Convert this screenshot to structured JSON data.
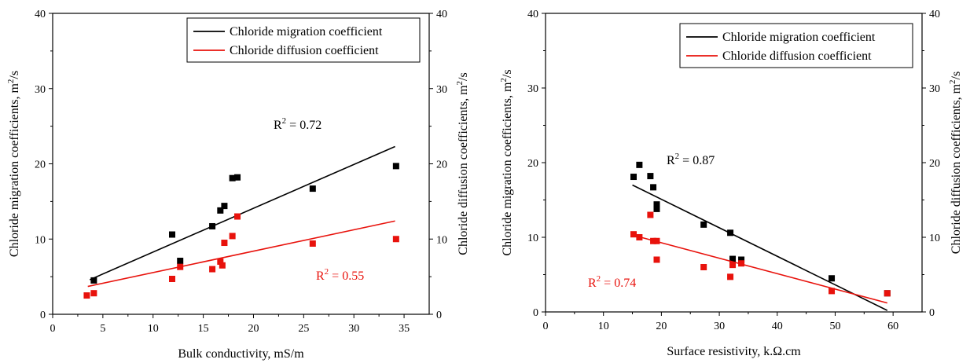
{
  "chart_data": [
    {
      "type": "scatter",
      "xlabel": "Bulk conductivity, mS/m",
      "ylabel": "Chloride migration coefficients, m",
      "ylabel_sup": "2",
      "ylabel_tail": "/s",
      "y2label": "Chloride diffusion coefficients, m",
      "y2label_sup": "2",
      "y2label_tail": "/s",
      "xlim": [
        0,
        37.5
      ],
      "ylim": [
        0,
        40
      ],
      "y2lim": [
        0,
        40
      ],
      "xticks": [
        0,
        5,
        10,
        15,
        20,
        25,
        30,
        35
      ],
      "yticks": [
        0,
        10,
        20,
        30,
        40
      ],
      "grid": false,
      "legend_position": "top-right",
      "series": [
        {
          "name": "Chloride migration coefficient",
          "color": "#000000",
          "marker": "square",
          "points": [
            [
              4.1,
              4.5
            ],
            [
              11.9,
              10.6
            ],
            [
              12.7,
              7.1
            ],
            [
              15.9,
              11.7
            ],
            [
              16.7,
              13.8
            ],
            [
              17.1,
              14.4
            ],
            [
              17.9,
              18.1
            ],
            [
              18.4,
              18.2
            ],
            [
              25.9,
              16.7
            ],
            [
              34.2,
              19.7
            ]
          ],
          "fit": [
            [
              3.7,
              4.6
            ],
            [
              34.1,
              22.3
            ]
          ],
          "r2_label": "R",
          "r2_sup": "2",
          "r2_value": " = 0.72"
        },
        {
          "name": "Chloride diffusion coefficient",
          "color": "#e8120c",
          "marker": "square",
          "points": [
            [
              3.4,
              2.5
            ],
            [
              4.1,
              2.8
            ],
            [
              11.9,
              4.7
            ],
            [
              12.7,
              6.3
            ],
            [
              15.9,
              6.0
            ],
            [
              16.7,
              7.0
            ],
            [
              16.9,
              6.5
            ],
            [
              17.1,
              9.5
            ],
            [
              17.9,
              10.4
            ],
            [
              18.4,
              13.0
            ],
            [
              25.9,
              9.4
            ],
            [
              34.2,
              10.0
            ]
          ],
          "fit": [
            [
              3.5,
              3.7
            ],
            [
              34.1,
              12.4
            ]
          ],
          "r2_label": "R",
          "r2_sup": "2",
          "r2_value": " = 0.55"
        }
      ]
    },
    {
      "type": "scatter",
      "xlabel": "Surface resistivity, k.Ω.cm",
      "ylabel": "Chloride migration coefficients, m",
      "ylabel_sup": "2",
      "ylabel_tail": "/s",
      "y2label": "Chloride diffusion coefficients, m",
      "y2label_sup": "2",
      "y2label_tail": "/s",
      "xlim": [
        0,
        65
      ],
      "ylim": [
        0,
        40
      ],
      "y2lim": [
        0,
        40
      ],
      "xticks": [
        0,
        10,
        20,
        30,
        40,
        50,
        60
      ],
      "yticks": [
        0,
        10,
        20,
        30,
        40
      ],
      "grid": false,
      "legend_position": "top-right",
      "series": [
        {
          "name": "Chloride migration coefficient",
          "color": "#000000",
          "marker": "square",
          "points": [
            [
              15.2,
              18.1
            ],
            [
              16.2,
              19.7
            ],
            [
              18.1,
              18.2
            ],
            [
              18.6,
              16.7
            ],
            [
              19.2,
              14.4
            ],
            [
              19.2,
              13.8
            ],
            [
              27.3,
              11.7
            ],
            [
              31.9,
              10.6
            ],
            [
              32.3,
              7.1
            ],
            [
              33.8,
              7.0
            ],
            [
              49.4,
              4.5
            ],
            [
              59.0,
              2.5
            ]
          ],
          "fit": [
            [
              15.0,
              17.0
            ],
            [
              59.0,
              0.2
            ]
          ],
          "r2_label": "R",
          "r2_sup": "2",
          "r2_value": " = 0.87"
        },
        {
          "name": "Chloride diffusion coefficient",
          "color": "#e8120c",
          "marker": "square",
          "points": [
            [
              15.2,
              10.4
            ],
            [
              16.2,
              10.0
            ],
            [
              18.1,
              13.0
            ],
            [
              18.6,
              9.5
            ],
            [
              19.2,
              9.5
            ],
            [
              19.2,
              7.0
            ],
            [
              27.3,
              6.0
            ],
            [
              31.9,
              4.7
            ],
            [
              32.3,
              6.3
            ],
            [
              33.8,
              6.5
            ],
            [
              49.4,
              2.8
            ],
            [
              59.0,
              2.5
            ]
          ],
          "fit": [
            [
              15.0,
              10.3
            ],
            [
              59.0,
              1.2
            ]
          ],
          "r2_label": "R",
          "r2_sup": "2",
          "r2_value": " = 0.74"
        }
      ]
    }
  ]
}
